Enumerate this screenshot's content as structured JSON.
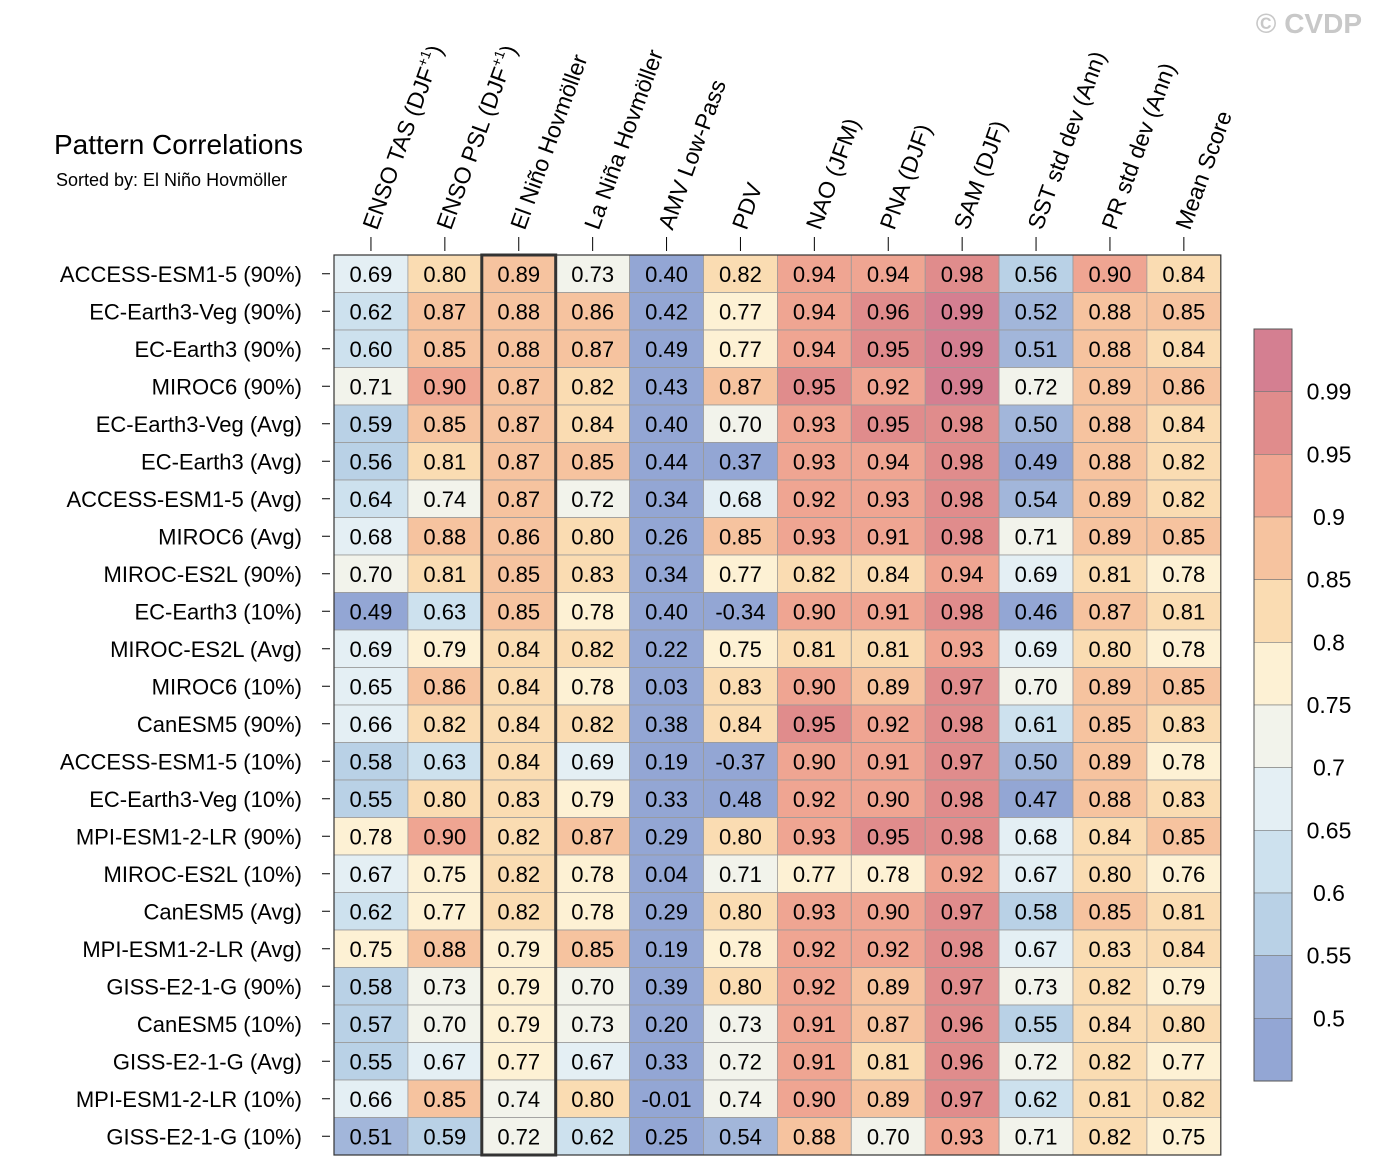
{
  "copyright": "© CVDP",
  "title": "Pattern Correlations",
  "subtitle": "Sorted by: El Niño Hovmöller",
  "chart_data": {
    "type": "heatmap",
    "columns": [
      {
        "base": "ENSO TAS (DJF",
        "sup": "+1",
        "end": ")"
      },
      {
        "base": "ENSO PSL (DJF",
        "sup": "+1",
        "end": ")"
      },
      {
        "base": "El Niño Hovmöller"
      },
      {
        "base": "La Niña Hovmöller"
      },
      {
        "base": "AMV Low-Pass"
      },
      {
        "base": "PDV"
      },
      {
        "base": "NAO (JFM)"
      },
      {
        "base": "PNA (DJF)"
      },
      {
        "base": "SAM (DJF)"
      },
      {
        "base": "SST std dev (Ann)"
      },
      {
        "base": "PR std dev (Ann)"
      },
      {
        "base": "Mean Score"
      }
    ],
    "highlighted_column": 2,
    "rows": [
      "ACCESS-ESM1-5 (90%)",
      "EC-Earth3-Veg (90%)",
      "EC-Earth3 (90%)",
      "MIROC6 (90%)",
      "EC-Earth3-Veg (Avg)",
      "EC-Earth3 (Avg)",
      "ACCESS-ESM1-5 (Avg)",
      "MIROC6 (Avg)",
      "MIROC-ES2L (90%)",
      "EC-Earth3 (10%)",
      "MIROC-ES2L (Avg)",
      "MIROC6 (10%)",
      "CanESM5 (90%)",
      "ACCESS-ESM1-5 (10%)",
      "EC-Earth3-Veg (10%)",
      "MPI-ESM1-2-LR (90%)",
      "MIROC-ES2L (10%)",
      "CanESM5 (Avg)",
      "MPI-ESM1-2-LR (Avg)",
      "GISS-E2-1-G (90%)",
      "CanESM5 (10%)",
      "GISS-E2-1-G (Avg)",
      "MPI-ESM1-2-LR (10%)",
      "GISS-E2-1-G (10%)"
    ],
    "values": [
      [
        "0.69",
        "0.80",
        "0.89",
        "0.73",
        "0.40",
        "0.82",
        "0.94",
        "0.94",
        "0.98",
        "0.56",
        "0.90",
        "0.84"
      ],
      [
        "0.62",
        "0.87",
        "0.88",
        "0.86",
        "0.42",
        "0.77",
        "0.94",
        "0.96",
        "0.99",
        "0.52",
        "0.88",
        "0.85"
      ],
      [
        "0.60",
        "0.85",
        "0.88",
        "0.87",
        "0.49",
        "0.77",
        "0.94",
        "0.95",
        "0.99",
        "0.51",
        "0.88",
        "0.84"
      ],
      [
        "0.71",
        "0.90",
        "0.87",
        "0.82",
        "0.43",
        "0.87",
        "0.95",
        "0.92",
        "0.99",
        "0.72",
        "0.89",
        "0.86"
      ],
      [
        "0.59",
        "0.85",
        "0.87",
        "0.84",
        "0.40",
        "0.70",
        "0.93",
        "0.95",
        "0.98",
        "0.50",
        "0.88",
        "0.84"
      ],
      [
        "0.56",
        "0.81",
        "0.87",
        "0.85",
        "0.44",
        "0.37",
        "0.93",
        "0.94",
        "0.98",
        "0.49",
        "0.88",
        "0.82"
      ],
      [
        "0.64",
        "0.74",
        "0.87",
        "0.72",
        "0.34",
        "0.68",
        "0.92",
        "0.93",
        "0.98",
        "0.54",
        "0.89",
        "0.82"
      ],
      [
        "0.68",
        "0.88",
        "0.86",
        "0.80",
        "0.26",
        "0.85",
        "0.93",
        "0.91",
        "0.98",
        "0.71",
        "0.89",
        "0.85"
      ],
      [
        "0.70",
        "0.81",
        "0.85",
        "0.83",
        "0.34",
        "0.77",
        "0.82",
        "0.84",
        "0.94",
        "0.69",
        "0.81",
        "0.78"
      ],
      [
        "0.49",
        "0.63",
        "0.85",
        "0.78",
        "0.40",
        "-0.34",
        "0.90",
        "0.91",
        "0.98",
        "0.46",
        "0.87",
        "0.81"
      ],
      [
        "0.69",
        "0.79",
        "0.84",
        "0.82",
        "0.22",
        "0.75",
        "0.81",
        "0.81",
        "0.93",
        "0.69",
        "0.80",
        "0.78"
      ],
      [
        "0.65",
        "0.86",
        "0.84",
        "0.78",
        "0.03",
        "0.83",
        "0.90",
        "0.89",
        "0.97",
        "0.70",
        "0.89",
        "0.85"
      ],
      [
        "0.66",
        "0.82",
        "0.84",
        "0.82",
        "0.38",
        "0.84",
        "0.95",
        "0.92",
        "0.98",
        "0.61",
        "0.85",
        "0.83"
      ],
      [
        "0.58",
        "0.63",
        "0.84",
        "0.69",
        "0.19",
        "-0.37",
        "0.90",
        "0.91",
        "0.97",
        "0.50",
        "0.89",
        "0.78"
      ],
      [
        "0.55",
        "0.80",
        "0.83",
        "0.79",
        "0.33",
        "0.48",
        "0.92",
        "0.90",
        "0.98",
        "0.47",
        "0.88",
        "0.83"
      ],
      [
        "0.78",
        "0.90",
        "0.82",
        "0.87",
        "0.29",
        "0.80",
        "0.93",
        "0.95",
        "0.98",
        "0.68",
        "0.84",
        "0.85"
      ],
      [
        "0.67",
        "0.75",
        "0.82",
        "0.78",
        "0.04",
        "0.71",
        "0.77",
        "0.78",
        "0.92",
        "0.67",
        "0.80",
        "0.76"
      ],
      [
        "0.62",
        "0.77",
        "0.82",
        "0.78",
        "0.29",
        "0.80",
        "0.93",
        "0.90",
        "0.97",
        "0.58",
        "0.85",
        "0.81"
      ],
      [
        "0.75",
        "0.88",
        "0.79",
        "0.85",
        "0.19",
        "0.78",
        "0.92",
        "0.92",
        "0.98",
        "0.67",
        "0.83",
        "0.84"
      ],
      [
        "0.58",
        "0.73",
        "0.79",
        "0.70",
        "0.39",
        "0.80",
        "0.92",
        "0.89",
        "0.97",
        "0.73",
        "0.82",
        "0.79"
      ],
      [
        "0.57",
        "0.70",
        "0.79",
        "0.73",
        "0.20",
        "0.73",
        "0.91",
        "0.87",
        "0.96",
        "0.55",
        "0.84",
        "0.80"
      ],
      [
        "0.55",
        "0.67",
        "0.77",
        "0.67",
        "0.33",
        "0.72",
        "0.91",
        "0.81",
        "0.96",
        "0.72",
        "0.82",
        "0.77"
      ],
      [
        "0.66",
        "0.85",
        "0.74",
        "0.80",
        "-0.01",
        "0.74",
        "0.90",
        "0.89",
        "0.97",
        "0.62",
        "0.81",
        "0.82"
      ],
      [
        "0.51",
        "0.59",
        "0.72",
        "0.62",
        "0.25",
        "0.54",
        "0.88",
        "0.70",
        "0.93",
        "0.71",
        "0.82",
        "0.75"
      ]
    ],
    "colorbar": {
      "labels": [
        "0.99",
        "0.95",
        "0.9",
        "0.85",
        "0.8",
        "0.75",
        "0.7",
        "0.65",
        "0.6",
        "0.55",
        "0.5"
      ],
      "bins": [
        {
          "min": 0.99,
          "color": "#d47f91"
        },
        {
          "min": 0.95,
          "color": "#e08c8c"
        },
        {
          "min": 0.9,
          "color": "#efa592"
        },
        {
          "min": 0.85,
          "color": "#f6c39f"
        },
        {
          "min": 0.8,
          "color": "#fadcb2"
        },
        {
          "min": 0.75,
          "color": "#fdf1d4"
        },
        {
          "min": 0.7,
          "color": "#f2f3eb"
        },
        {
          "min": 0.65,
          "color": "#e4eff4"
        },
        {
          "min": 0.6,
          "color": "#cde1ee"
        },
        {
          "min": 0.55,
          "color": "#b9d1e6"
        },
        {
          "min": 0.5,
          "color": "#a2b6da"
        },
        {
          "min": -99,
          "color": "#93a6d4"
        }
      ]
    }
  }
}
